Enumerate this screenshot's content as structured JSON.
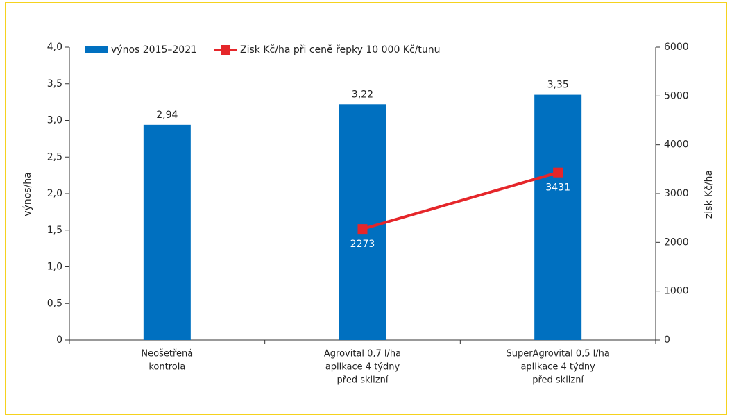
{
  "chart_data": {
    "type": "bar-line",
    "categories": [
      [
        "Neošetřená",
        "kontrola"
      ],
      [
        "Agrovital 0,7 l/ha",
        "aplikace 4 týdny",
        "před sklizní"
      ],
      [
        "SuperAgrovital 0,5 l/ha",
        "aplikace 4 týdny",
        "před sklizní"
      ]
    ],
    "ylabel": "výnos/ha",
    "y2label": "zisk Kč/ha",
    "ylim": [
      0,
      4
    ],
    "yticks": [
      0,
      {
        "value": 0.5,
        "label": "0,5"
      },
      {
        "value": 1,
        "label": "1,0"
      },
      {
        "value": 1.5,
        "label": "1,5"
      },
      {
        "value": 2,
        "label": "2,0"
      },
      {
        "value": 2.5,
        "label": "2,5"
      },
      {
        "value": 3,
        "label": "3,0"
      },
      {
        "value": 3.5,
        "label": "3,5"
      },
      {
        "value": 4,
        "label": "4,0"
      }
    ],
    "y2lim": [
      0,
      6000
    ],
    "y2ticks": [
      0,
      1000,
      2000,
      3000,
      4000,
      5000,
      6000
    ],
    "series": [
      {
        "name": "výnos 2015–2021",
        "type": "bar",
        "color": "#0070c0",
        "values": [
          2.94,
          3.22,
          3.35
        ],
        "value_labels": [
          "2,94",
          "3,22",
          "3,35"
        ]
      },
      {
        "name": "Zisk Kč/ha při ceně řepky 10 000 Kč/tunu",
        "type": "line",
        "axis": "y2",
        "color": "#e5262a",
        "values": [
          null,
          2273,
          3431
        ]
      }
    ],
    "legend": "top-left"
  }
}
